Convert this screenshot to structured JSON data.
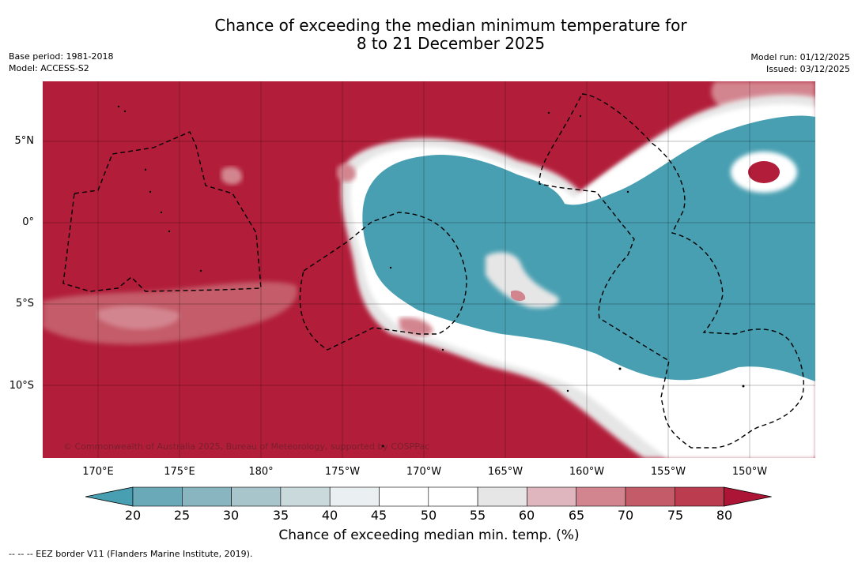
{
  "header": {
    "title_line1": "Chance of exceeding the median minimum temperature for",
    "title_line2": "8 to 21 December 2025",
    "base_period": "Base period: 1981-2018",
    "model": "Model: ACCESS-S2",
    "model_run": "Model run: 01/12/2025",
    "issued": "Issued: 03/12/2025"
  },
  "map": {
    "copyright": "© Commonwealth of Australia 2025, Bureau of Meteorology, supported by COSPPac",
    "lat_labels": [
      "5°N",
      "0°",
      "5°S",
      "10°S"
    ],
    "lon_labels": [
      "170°E",
      "175°E",
      "180°",
      "175°W",
      "170°W",
      "165°W",
      "160°W",
      "155°W",
      "150°W"
    ],
    "colors": {
      "high": "#b21e3a",
      "low": "#489fb1",
      "white": "#ffffff",
      "border": "#000000"
    }
  },
  "colorbar": {
    "ticks": [
      "20",
      "25",
      "30",
      "35",
      "40",
      "45",
      "50",
      "55",
      "60",
      "65",
      "70",
      "75",
      "80"
    ],
    "colors": [
      "#489fb1",
      "#6aa9b8",
      "#88b5c0",
      "#a8c5cb",
      "#cad9dc",
      "#eaf0f1",
      "#ffffff",
      "#ffffff",
      "#e6e6e6",
      "#dfb6bd",
      "#d3858f",
      "#c45b69",
      "#bb3b4f",
      "#ad1537"
    ],
    "label": "Chance of exceeding median min. temp. (%)"
  },
  "legend": {
    "eez_note": "--  --  -- EEZ border V11 (Flanders Marine Institute, 2019)."
  }
}
